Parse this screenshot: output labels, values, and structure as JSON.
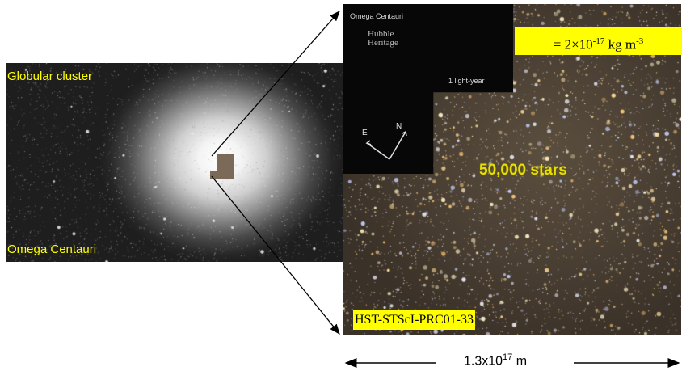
{
  "left_image": {
    "title_label": "Globular cluster",
    "name_label": "Omega Centauri"
  },
  "right_image": {
    "info_title": "Omega Centauri",
    "logo_line1": "Hubble",
    "logo_line2": "Heritage",
    "scale_bar_label": "1 light-year",
    "compass_east": "E",
    "compass_north": "N",
    "density_prefix": "= 2×10",
    "density_exponent": "-17",
    "density_unit": " kg m",
    "density_unit_exponent": "-3",
    "stars_count": "50,000 stars",
    "credit": "HST-STScI-PRC01-33"
  },
  "scale": {
    "base": "1.3x10",
    "exponent": "17",
    "unit": " m"
  },
  "colors": {
    "label_yellow": "#ffff00",
    "arrow": "#000000"
  }
}
